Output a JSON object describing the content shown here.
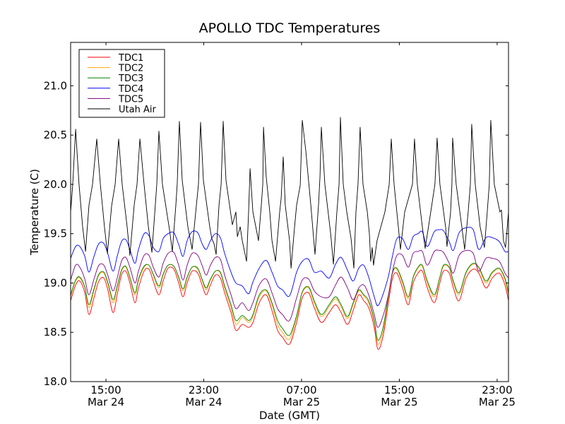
{
  "chart_data": {
    "type": "line",
    "title": "APOLLO TDC Temperatures",
    "xlabel": "Date (GMT)",
    "ylabel": "Temperature (C)",
    "x_units": "hours since Mar 24 00:00 GMT",
    "xlim": [
      12.11,
      47.93
    ],
    "ylim": [
      18.0,
      21.44
    ],
    "grid": false,
    "legend_position": "top-left",
    "yticks": [
      18.0,
      18.5,
      19.0,
      19.5,
      20.0,
      20.5,
      21.0
    ],
    "ytick_labels": [
      "18.0",
      "18.5",
      "19.0",
      "19.5",
      "20.0",
      "20.5",
      "21.0"
    ],
    "xticks": [
      15,
      23,
      31,
      39,
      47
    ],
    "xtick_labels": [
      {
        "time": "15:00",
        "date": "Mar 24"
      },
      {
        "time": "23:00",
        "date": "Mar 24"
      },
      {
        "time": "07:00",
        "date": "Mar 25"
      },
      {
        "time": "15:00",
        "date": "Mar 25"
      },
      {
        "time": "23:00",
        "date": "Mar 25"
      }
    ],
    "x": [
      12.11,
      12.52,
      12.86,
      13.27,
      13.61,
      14.02,
      14.42,
      14.83,
      15.17,
      15.58,
      15.92,
      16.27,
      16.62,
      16.96,
      17.37,
      17.66,
      18.12,
      18.52,
      18.87,
      19.33,
      19.68,
      20.08,
      20.55,
      20.95,
      21.3,
      21.64,
      22.05,
      22.51,
      22.86,
      23.2,
      23.55,
      23.95,
      24.36,
      24.71,
      25.23,
      25.63,
      26.15,
      26.67,
      27.02,
      27.54,
      28.11,
      28.58,
      29.04,
      29.44,
      30.02,
      30.6,
      31.06,
      31.58,
      32.04,
      32.62,
      33.26,
      33.78,
      34.24,
      34.76,
      35.22,
      35.68,
      36.09,
      36.49,
      36.95,
      37.24,
      37.65,
      38.11,
      38.45,
      38.8,
      39.26,
      39.73,
      40.13,
      40.53,
      40.88,
      41.29,
      41.86,
      42.27,
      42.61,
      43.08,
      43.42,
      43.89,
      44.46,
      45.04,
      45.5,
      46.08,
      46.6,
      47.18,
      47.64,
      47.93
    ],
    "series": [
      {
        "name": "TDC1",
        "color": "#ff0000",
        "values": [
          18.82,
          18.98,
          19.02,
          18.9,
          18.68,
          18.85,
          19.02,
          19.05,
          18.92,
          18.7,
          18.88,
          19.08,
          19.12,
          19.0,
          18.8,
          18.95,
          19.12,
          19.14,
          19.02,
          18.88,
          19.02,
          19.15,
          19.14,
          19.0,
          18.86,
          19.0,
          19.12,
          19.1,
          18.98,
          18.88,
          18.98,
          19.08,
          19.05,
          18.9,
          18.7,
          18.52,
          18.58,
          18.55,
          18.6,
          18.8,
          18.88,
          18.72,
          18.52,
          18.45,
          18.38,
          18.6,
          18.85,
          18.9,
          18.75,
          18.6,
          18.7,
          18.78,
          18.7,
          18.58,
          18.72,
          18.88,
          18.82,
          18.75,
          18.55,
          18.33,
          18.45,
          18.8,
          19.05,
          19.1,
          18.95,
          18.78,
          19.0,
          19.1,
          19.12,
          18.95,
          18.8,
          18.98,
          19.12,
          19.1,
          18.95,
          18.82,
          19.05,
          19.14,
          19.1,
          18.95,
          19.05,
          19.1,
          18.98,
          18.82
        ]
      },
      {
        "name": "TDC2",
        "color": "#ffa500",
        "values": [
          18.86,
          19.02,
          19.05,
          18.95,
          18.75,
          18.92,
          19.08,
          19.1,
          18.98,
          18.8,
          18.95,
          19.12,
          19.16,
          19.05,
          18.88,
          19.02,
          19.16,
          19.18,
          19.08,
          18.95,
          19.08,
          19.18,
          19.17,
          19.05,
          18.92,
          19.05,
          19.16,
          19.14,
          19.03,
          18.93,
          19.03,
          19.12,
          19.1,
          18.95,
          18.75,
          18.58,
          18.65,
          18.6,
          18.66,
          18.86,
          18.92,
          18.78,
          18.58,
          18.5,
          18.43,
          18.65,
          18.9,
          18.95,
          18.8,
          18.66,
          18.76,
          18.84,
          18.76,
          18.64,
          18.78,
          18.92,
          18.87,
          18.8,
          18.6,
          18.38,
          18.5,
          18.85,
          19.1,
          19.14,
          19.0,
          18.84,
          19.05,
          19.15,
          19.17,
          19.0,
          18.86,
          19.03,
          19.17,
          19.15,
          19.0,
          18.88,
          19.1,
          19.19,
          19.15,
          19.0,
          19.1,
          19.14,
          19.03,
          18.87
        ]
      },
      {
        "name": "TDC3",
        "color": "#008000",
        "values": [
          18.88,
          19.03,
          19.06,
          18.96,
          18.78,
          18.94,
          19.09,
          19.11,
          19.0,
          18.83,
          18.97,
          19.13,
          19.17,
          19.06,
          18.9,
          19.04,
          19.17,
          19.18,
          19.09,
          18.97,
          19.09,
          19.18,
          19.17,
          19.06,
          18.94,
          19.06,
          19.16,
          19.15,
          19.04,
          18.95,
          19.04,
          19.12,
          19.11,
          18.97,
          18.78,
          18.62,
          18.67,
          18.62,
          18.68,
          18.88,
          18.93,
          18.8,
          18.62,
          18.54,
          18.47,
          18.67,
          18.91,
          18.96,
          18.82,
          18.68,
          18.78,
          18.86,
          18.78,
          18.66,
          18.8,
          18.93,
          18.88,
          18.82,
          18.62,
          18.42,
          18.54,
          18.87,
          19.11,
          19.15,
          19.02,
          18.86,
          19.06,
          19.16,
          19.18,
          19.02,
          18.88,
          19.04,
          19.18,
          19.16,
          19.02,
          18.9,
          19.11,
          19.2,
          19.16,
          19.02,
          19.11,
          19.15,
          19.05,
          18.9
        ]
      },
      {
        "name": "TDC4",
        "color": "#0000ff",
        "values": [
          19.25,
          19.37,
          19.37,
          19.27,
          19.11,
          19.27,
          19.4,
          19.4,
          19.29,
          19.12,
          19.27,
          19.42,
          19.44,
          19.34,
          19.2,
          19.34,
          19.5,
          19.48,
          19.36,
          19.32,
          19.45,
          19.5,
          19.51,
          19.39,
          19.27,
          19.43,
          19.52,
          19.51,
          19.4,
          19.34,
          19.43,
          19.5,
          19.46,
          19.3,
          19.11,
          19.0,
          18.97,
          18.89,
          19.01,
          19.15,
          19.23,
          19.11,
          18.97,
          18.93,
          18.87,
          19.11,
          19.22,
          19.24,
          19.11,
          19.12,
          19.05,
          19.19,
          19.26,
          19.13,
          19.02,
          19.15,
          19.18,
          19.06,
          18.86,
          18.77,
          18.88,
          19.07,
          19.28,
          19.45,
          19.45,
          19.34,
          19.47,
          19.5,
          19.52,
          19.37,
          19.52,
          19.54,
          19.53,
          19.42,
          19.33,
          19.51,
          19.56,
          19.54,
          19.34,
          19.46,
          19.46,
          19.42,
          19.32,
          19.32
        ]
      },
      {
        "name": "TDC5",
        "color": "#800080",
        "values": [
          19.03,
          19.18,
          19.16,
          19.04,
          18.88,
          19.04,
          19.18,
          19.18,
          19.07,
          18.92,
          19.05,
          19.22,
          19.26,
          19.16,
          19.0,
          19.12,
          19.28,
          19.28,
          19.16,
          19.06,
          19.2,
          19.3,
          19.31,
          19.18,
          19.03,
          19.18,
          19.3,
          19.28,
          19.18,
          19.08,
          19.18,
          19.26,
          19.24,
          19.08,
          18.88,
          18.74,
          18.8,
          18.72,
          18.8,
          18.98,
          19.04,
          18.9,
          18.74,
          18.68,
          18.62,
          18.85,
          19.03,
          19.04,
          18.92,
          18.86,
          18.86,
          18.98,
          19.06,
          18.95,
          18.83,
          18.95,
          18.98,
          18.88,
          18.68,
          18.55,
          18.66,
          18.88,
          19.12,
          19.28,
          19.28,
          19.16,
          19.3,
          19.32,
          19.32,
          19.18,
          19.32,
          19.33,
          19.31,
          19.2,
          19.1,
          19.28,
          19.33,
          19.3,
          19.12,
          19.25,
          19.25,
          19.22,
          19.1,
          19.05
        ]
      },
      {
        "name": "Utah Air",
        "color": "#000000",
        "x": [
          12.11,
          12.28,
          12.52,
          12.8,
          13.09,
          13.33,
          13.61,
          13.9,
          14.25,
          14.54,
          14.88,
          15.12,
          15.46,
          15.75,
          16.04,
          16.33,
          16.73,
          16.96,
          17.31,
          17.54,
          17.78,
          18.12,
          18.47,
          18.76,
          19.04,
          19.16,
          19.33,
          19.62,
          20.2,
          20.43,
          20.72,
          20.83,
          21.01,
          21.24,
          21.7,
          22.05,
          22.4,
          22.57,
          22.74,
          22.97,
          23.49,
          23.66,
          23.84,
          24.01,
          24.25,
          24.42,
          24.59,
          24.82,
          25.34,
          25.63,
          25.75,
          25.98,
          26.15,
          26.5,
          26.67,
          26.79,
          27.02,
          27.48,
          27.71,
          27.83,
          27.89,
          28.11,
          28.4,
          28.58,
          28.87,
          29.21,
          29.33,
          29.5,
          29.67,
          30.02,
          30.14,
          30.43,
          30.6,
          30.89,
          31.06,
          31.35,
          31.76,
          32.1,
          32.39,
          32.51,
          32.62,
          32.91,
          33.38,
          33.61,
          33.89,
          34.07,
          34.18,
          34.41,
          34.7,
          35.05,
          35.28,
          35.45,
          35.62,
          35.79,
          36.03,
          36.38,
          36.55,
          36.66,
          36.78,
          36.89,
          37.18,
          37.82,
          38.17,
          38.34,
          38.57,
          38.92,
          39.09,
          39.44,
          40.07,
          40.24,
          40.47,
          40.88,
          41.11,
          41.57,
          41.91,
          42.09,
          42.32,
          42.78,
          42.9,
          43.19,
          43.3,
          43.36,
          43.65,
          44.11,
          44.34,
          44.63,
          44.81,
          44.92,
          45.21,
          45.61,
          45.96,
          46.19,
          46.36,
          46.48,
          46.77,
          47.23,
          47.35,
          47.52,
          47.69,
          47.93
        ],
        "values": [
          19.72,
          19.99,
          20.56,
          20.0,
          19.57,
          19.32,
          19.79,
          20.0,
          20.46,
          20.0,
          19.57,
          19.3,
          19.78,
          20.0,
          20.46,
          20.0,
          19.57,
          19.28,
          19.79,
          20.0,
          20.46,
          20.0,
          19.57,
          19.31,
          19.79,
          20.0,
          20.54,
          20.0,
          19.54,
          19.32,
          19.79,
          20.0,
          20.64,
          20.04,
          19.57,
          19.34,
          19.79,
          20.0,
          20.63,
          20.04,
          19.57,
          19.45,
          19.4,
          19.29,
          19.79,
          20.0,
          20.64,
          20.04,
          19.59,
          19.72,
          19.47,
          19.57,
          19.43,
          19.22,
          19.72,
          20.16,
          19.72,
          19.43,
          19.79,
          20.0,
          20.58,
          20.08,
          19.72,
          19.43,
          19.22,
          19.72,
          19.86,
          20.28,
          19.79,
          19.43,
          19.15,
          19.57,
          19.79,
          19.99,
          20.65,
          20.34,
          19.79,
          19.29,
          19.79,
          20.08,
          20.58,
          20.0,
          19.5,
          19.19,
          19.72,
          20.0,
          20.68,
          20.0,
          19.72,
          19.45,
          19.15,
          19.72,
          20.0,
          20.58,
          20.0,
          19.72,
          19.5,
          19.22,
          19.36,
          19.18,
          19.43,
          19.72,
          20.0,
          20.46,
          20.0,
          19.57,
          19.34,
          19.72,
          20.0,
          20.46,
          20.0,
          19.57,
          19.35,
          19.72,
          20.0,
          20.47,
          20.0,
          19.57,
          19.37,
          19.72,
          20.0,
          20.47,
          20.0,
          19.57,
          19.34,
          19.72,
          20.0,
          20.61,
          20.0,
          19.57,
          19.36,
          19.72,
          20.0,
          20.65,
          20.0,
          19.72,
          19.74,
          19.43,
          19.36,
          19.72
        ]
      }
    ]
  }
}
